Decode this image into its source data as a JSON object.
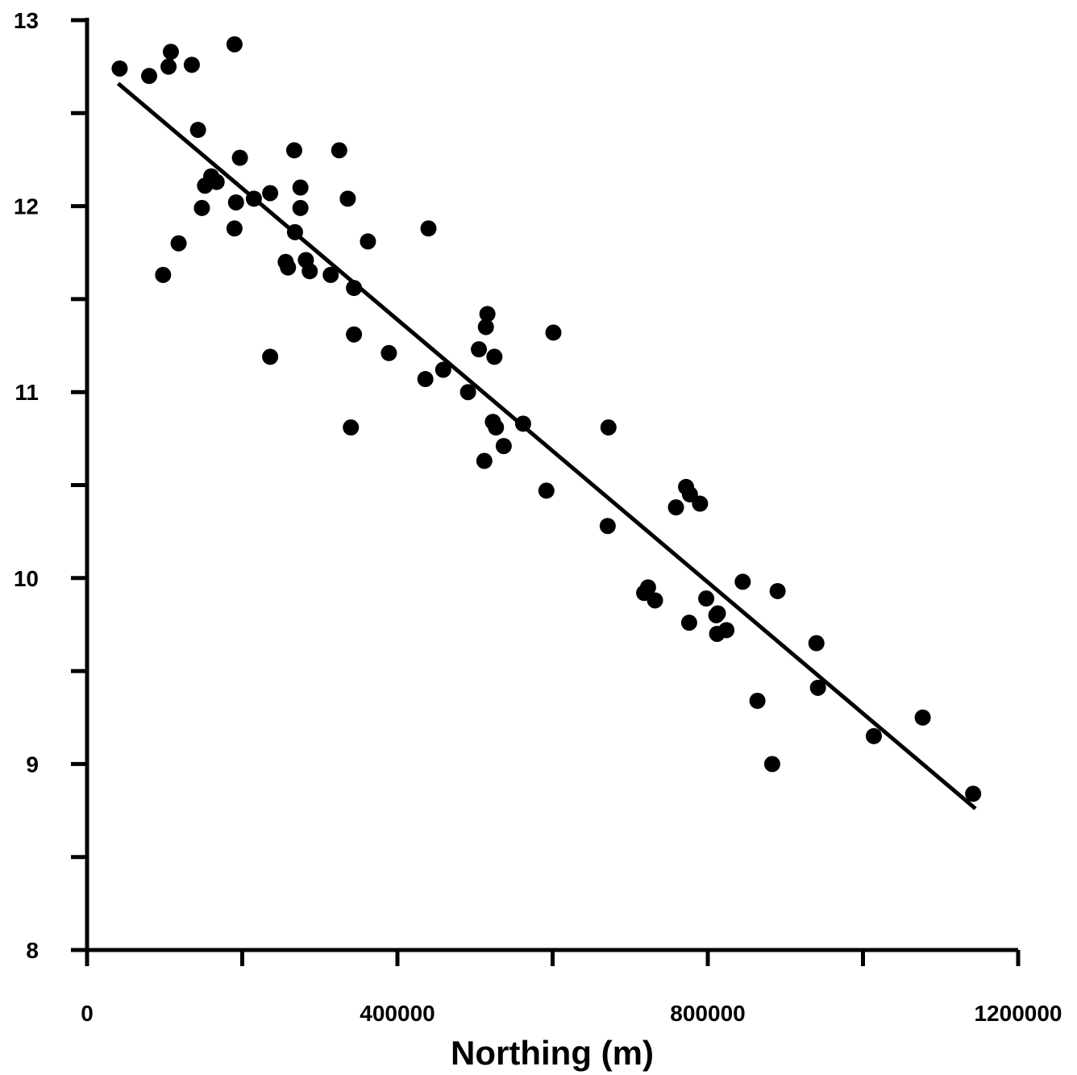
{
  "chart_data": {
    "type": "scatter",
    "xlabel": "Northing (m)",
    "ylabel": "",
    "xlim": [
      0,
      1200000
    ],
    "ylim": [
      8,
      13
    ],
    "x_ticks": [
      0,
      400000,
      800000,
      1200000
    ],
    "x_tick_labels": [
      "0",
      "400000",
      "800000",
      "1200000"
    ],
    "x_minor_ticks": [
      200000,
      600000,
      1000000
    ],
    "y_ticks": [
      8,
      9,
      10,
      11,
      12,
      13
    ],
    "y_tick_labels": [
      "8",
      "9",
      "10",
      "11",
      "12",
      "13"
    ],
    "y_minor_ticks": [
      8.5,
      9.5,
      10.5,
      11.5,
      12.5
    ],
    "grid": false,
    "legend": "none",
    "marker_color": "#000000",
    "line_color": "#000000",
    "series": [
      {
        "points": [
          [
            42000,
            12.74
          ],
          [
            80000,
            12.7
          ],
          [
            105000,
            12.75
          ],
          [
            108000,
            12.83
          ],
          [
            135000,
            12.76
          ],
          [
            190000,
            12.87
          ],
          [
            143000,
            12.41
          ],
          [
            152000,
            12.11
          ],
          [
            160000,
            12.16
          ],
          [
            167000,
            12.13
          ],
          [
            148000,
            11.99
          ],
          [
            98000,
            11.63
          ],
          [
            118000,
            11.8
          ],
          [
            197000,
            12.26
          ],
          [
            192000,
            12.02
          ],
          [
            190000,
            11.88
          ],
          [
            215000,
            12.04
          ],
          [
            236000,
            12.07
          ],
          [
            267000,
            12.3
          ],
          [
            275000,
            12.1
          ],
          [
            275000,
            11.99
          ],
          [
            268000,
            11.86
          ],
          [
            256000,
            11.7
          ],
          [
            259000,
            11.67
          ],
          [
            282000,
            11.71
          ],
          [
            287000,
            11.65
          ],
          [
            314000,
            11.63
          ],
          [
            325000,
            12.3
          ],
          [
            336000,
            12.04
          ],
          [
            362000,
            11.81
          ],
          [
            344000,
            11.56
          ],
          [
            344000,
            11.31
          ],
          [
            340000,
            10.81
          ],
          [
            236000,
            11.19
          ],
          [
            389000,
            11.21
          ],
          [
            440000,
            11.88
          ],
          [
            436000,
            11.07
          ],
          [
            459000,
            11.12
          ],
          [
            491000,
            11.0
          ],
          [
            505000,
            11.23
          ],
          [
            516000,
            11.42
          ],
          [
            514000,
            11.35
          ],
          [
            525000,
            11.19
          ],
          [
            523000,
            10.84
          ],
          [
            527000,
            10.81
          ],
          [
            537000,
            10.71
          ],
          [
            512000,
            10.63
          ],
          [
            562000,
            10.83
          ],
          [
            601000,
            11.32
          ],
          [
            592000,
            10.47
          ],
          [
            672000,
            10.81
          ],
          [
            671000,
            10.28
          ],
          [
            718000,
            9.92
          ],
          [
            723000,
            9.95
          ],
          [
            732000,
            9.88
          ],
          [
            759000,
            10.38
          ],
          [
            772000,
            10.49
          ],
          [
            777000,
            10.45
          ],
          [
            790000,
            10.4
          ],
          [
            776000,
            9.76
          ],
          [
            798000,
            9.89
          ],
          [
            811000,
            9.8
          ],
          [
            813000,
            9.81
          ],
          [
            812000,
            9.7
          ],
          [
            824000,
            9.72
          ],
          [
            845000,
            9.98
          ],
          [
            864000,
            9.34
          ],
          [
            883000,
            9.0
          ],
          [
            890000,
            9.93
          ],
          [
            940000,
            9.65
          ],
          [
            942000,
            9.41
          ],
          [
            1014000,
            9.15
          ],
          [
            1077000,
            9.25
          ],
          [
            1142000,
            8.84
          ]
        ]
      }
    ],
    "fit_line": {
      "x": [
        40000,
        1145000
      ],
      "y": [
        12.66,
        8.76
      ]
    }
  }
}
